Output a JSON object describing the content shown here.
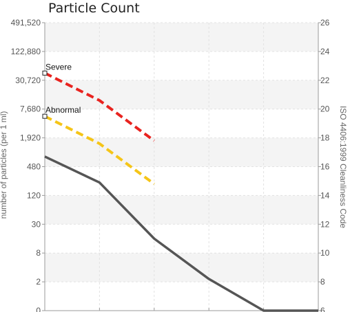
{
  "chart_data": {
    "type": "line",
    "title": "Particle Count",
    "ylabel_left": "number of particles (per 1 ml)",
    "ylabel_right": "ISO 4406:1999 Cleanliness Code",
    "left_ticks": [
      "491,520",
      "122,880",
      "30,720",
      "7,680",
      "1,920",
      "480",
      "120",
      "30",
      "8",
      "2",
      "0"
    ],
    "right_ticks": [
      "26",
      "24",
      "22",
      "20",
      "18",
      "16",
      "14",
      "12",
      "10",
      "8",
      "6"
    ],
    "y_code_range": [
      6,
      26
    ],
    "x_positions": [
      0,
      1,
      2,
      3,
      4,
      5
    ],
    "grid": true,
    "series": [
      {
        "name": "Severe",
        "color": "#e8231f",
        "dash": true,
        "marker_at_start": true,
        "points": [
          [
            0,
            22.5
          ],
          [
            1,
            20.6
          ],
          [
            2,
            17.8
          ]
        ]
      },
      {
        "name": "Abnormal",
        "color": "#f5c518",
        "dash": true,
        "marker_at_start": true,
        "points": [
          [
            0,
            19.5
          ],
          [
            1,
            17.6
          ],
          [
            2,
            14.8
          ]
        ]
      },
      {
        "name": "",
        "color": "#555555",
        "dash": false,
        "marker_at_start": false,
        "points": [
          [
            0,
            16.7
          ],
          [
            1,
            14.9
          ],
          [
            2,
            11.0
          ],
          [
            3,
            8.2
          ],
          [
            4,
            6.0
          ],
          [
            5,
            6.0
          ]
        ]
      }
    ]
  }
}
